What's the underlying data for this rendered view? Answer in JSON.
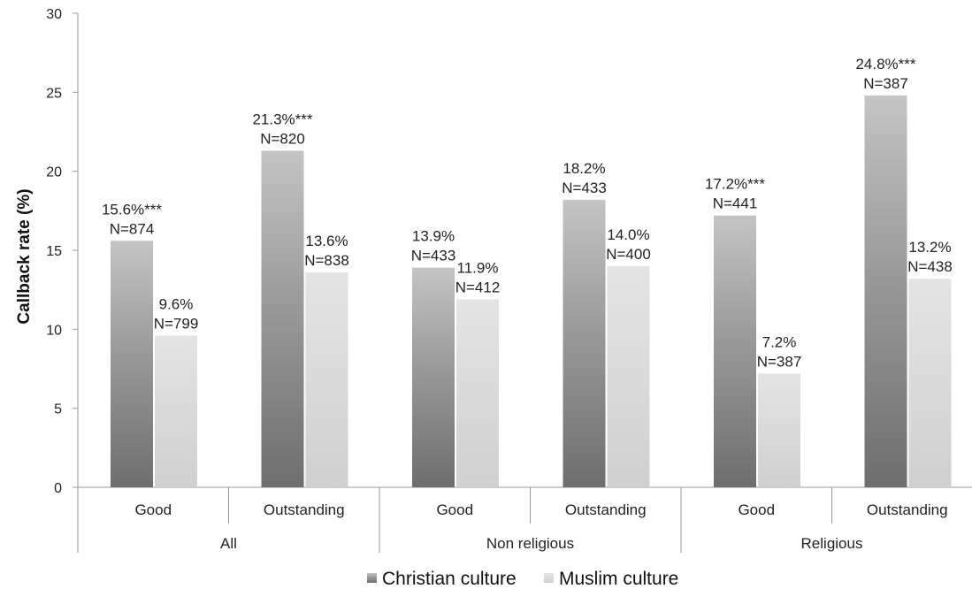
{
  "chart_data": {
    "type": "bar",
    "ylabel": "Callback rate (%)",
    "xlabel": "",
    "ylim": [
      0,
      30
    ],
    "yticks": [
      "0",
      "5",
      "10",
      "15",
      "20",
      "25",
      "30"
    ],
    "categories": [
      "Good",
      "Outstanding",
      "Good",
      "Outstanding",
      "Good",
      "Outstanding"
    ],
    "groups": [
      {
        "label": "All",
        "span": 2
      },
      {
        "label": "Non religious",
        "span": 2
      },
      {
        "label": "Religious",
        "span": 2
      }
    ],
    "series": [
      {
        "name": "Christian culture",
        "color": "#7a7a7a",
        "values": [
          15.6,
          21.3,
          13.9,
          18.2,
          17.2,
          24.8
        ],
        "labels": [
          [
            "15.6%***",
            "N=874"
          ],
          [
            "21.3%***",
            "N=820"
          ],
          [
            "13.9%",
            "N=433"
          ],
          [
            "18.2%",
            "N=433"
          ],
          [
            "17.2%***",
            "N=441"
          ],
          [
            "24.8%***",
            "N=387"
          ]
        ]
      },
      {
        "name": "Muslim culture",
        "color": "#dcdcdc",
        "values": [
          9.6,
          13.6,
          11.9,
          14.0,
          7.2,
          13.2
        ],
        "labels": [
          [
            "9.6%",
            "N=799"
          ],
          [
            "13.6%",
            "N=838"
          ],
          [
            "11.9%",
            "N=412"
          ],
          [
            "14.0%",
            "N=400"
          ],
          [
            "7.2%",
            "N=387"
          ],
          [
            "13.2%",
            "N=438"
          ]
        ]
      }
    ],
    "legend": {
      "position": "bottom"
    },
    "grid": false
  }
}
